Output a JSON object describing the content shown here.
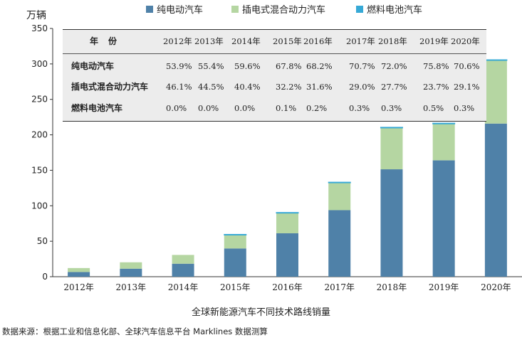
{
  "chart_data": {
    "type": "bar",
    "stacked": true,
    "unit_label": "万辆",
    "xlabel": "全球新能源汽车不同技术路线销量",
    "source_note": "数据来源：根据工业和信息化部、全球汽车信息平台 Marklines 数据测算",
    "categories": [
      "2012年",
      "2013年",
      "2014年",
      "2015年",
      "2016年",
      "2017年",
      "2018年",
      "2019年",
      "2020年"
    ],
    "ylim": [
      0,
      350
    ],
    "yticks": [
      0,
      50,
      100,
      150,
      200,
      250,
      300,
      350
    ],
    "legend_position": "top",
    "series": [
      {
        "name": "纯电动汽车",
        "color": "#4f81a8",
        "values": [
          6.6,
          11.3,
          18.3,
          39.8,
          61.2,
          93.8,
          151.4,
          164.1,
          215.9
        ]
      },
      {
        "name": "插电式混合动力汽车",
        "color": "#b5d6a2",
        "values": [
          5.6,
          9.0,
          12.4,
          18.9,
          28.4,
          38.5,
          58.3,
          51.3,
          89.0
        ]
      },
      {
        "name": "燃料电池汽车",
        "color": "#36a9d6",
        "values": [
          0.0,
          0.0,
          0.0,
          0.1,
          0.2,
          0.4,
          0.6,
          1.1,
          0.9
        ]
      }
    ],
    "table": {
      "header_label": "年份",
      "years": [
        "2012年",
        "2013年",
        "2014年",
        "2015年",
        "2016年",
        "2017年",
        "2018年",
        "2019年",
        "2020年"
      ],
      "rows": [
        {
          "label": "纯电动汽车",
          "values": [
            "53.9%",
            "55.4%",
            "59.6%",
            "67.8%",
            "68.2%",
            "70.7%",
            "72.0%",
            "75.8%",
            "70.6%"
          ]
        },
        {
          "label": "插电式混合动力汽车",
          "values": [
            "46.1%",
            "44.5%",
            "40.4%",
            "32.2%",
            "31.6%",
            "29.0%",
            "27.7%",
            "23.7%",
            "29.1%"
          ]
        },
        {
          "label": "燃料电池汽车",
          "values": [
            "0.0%",
            "0.0%",
            "0.0%",
            "0.1%",
            "0.2%",
            "0.3%",
            "0.3%",
            "0.5%",
            "0.3%"
          ]
        }
      ]
    }
  }
}
